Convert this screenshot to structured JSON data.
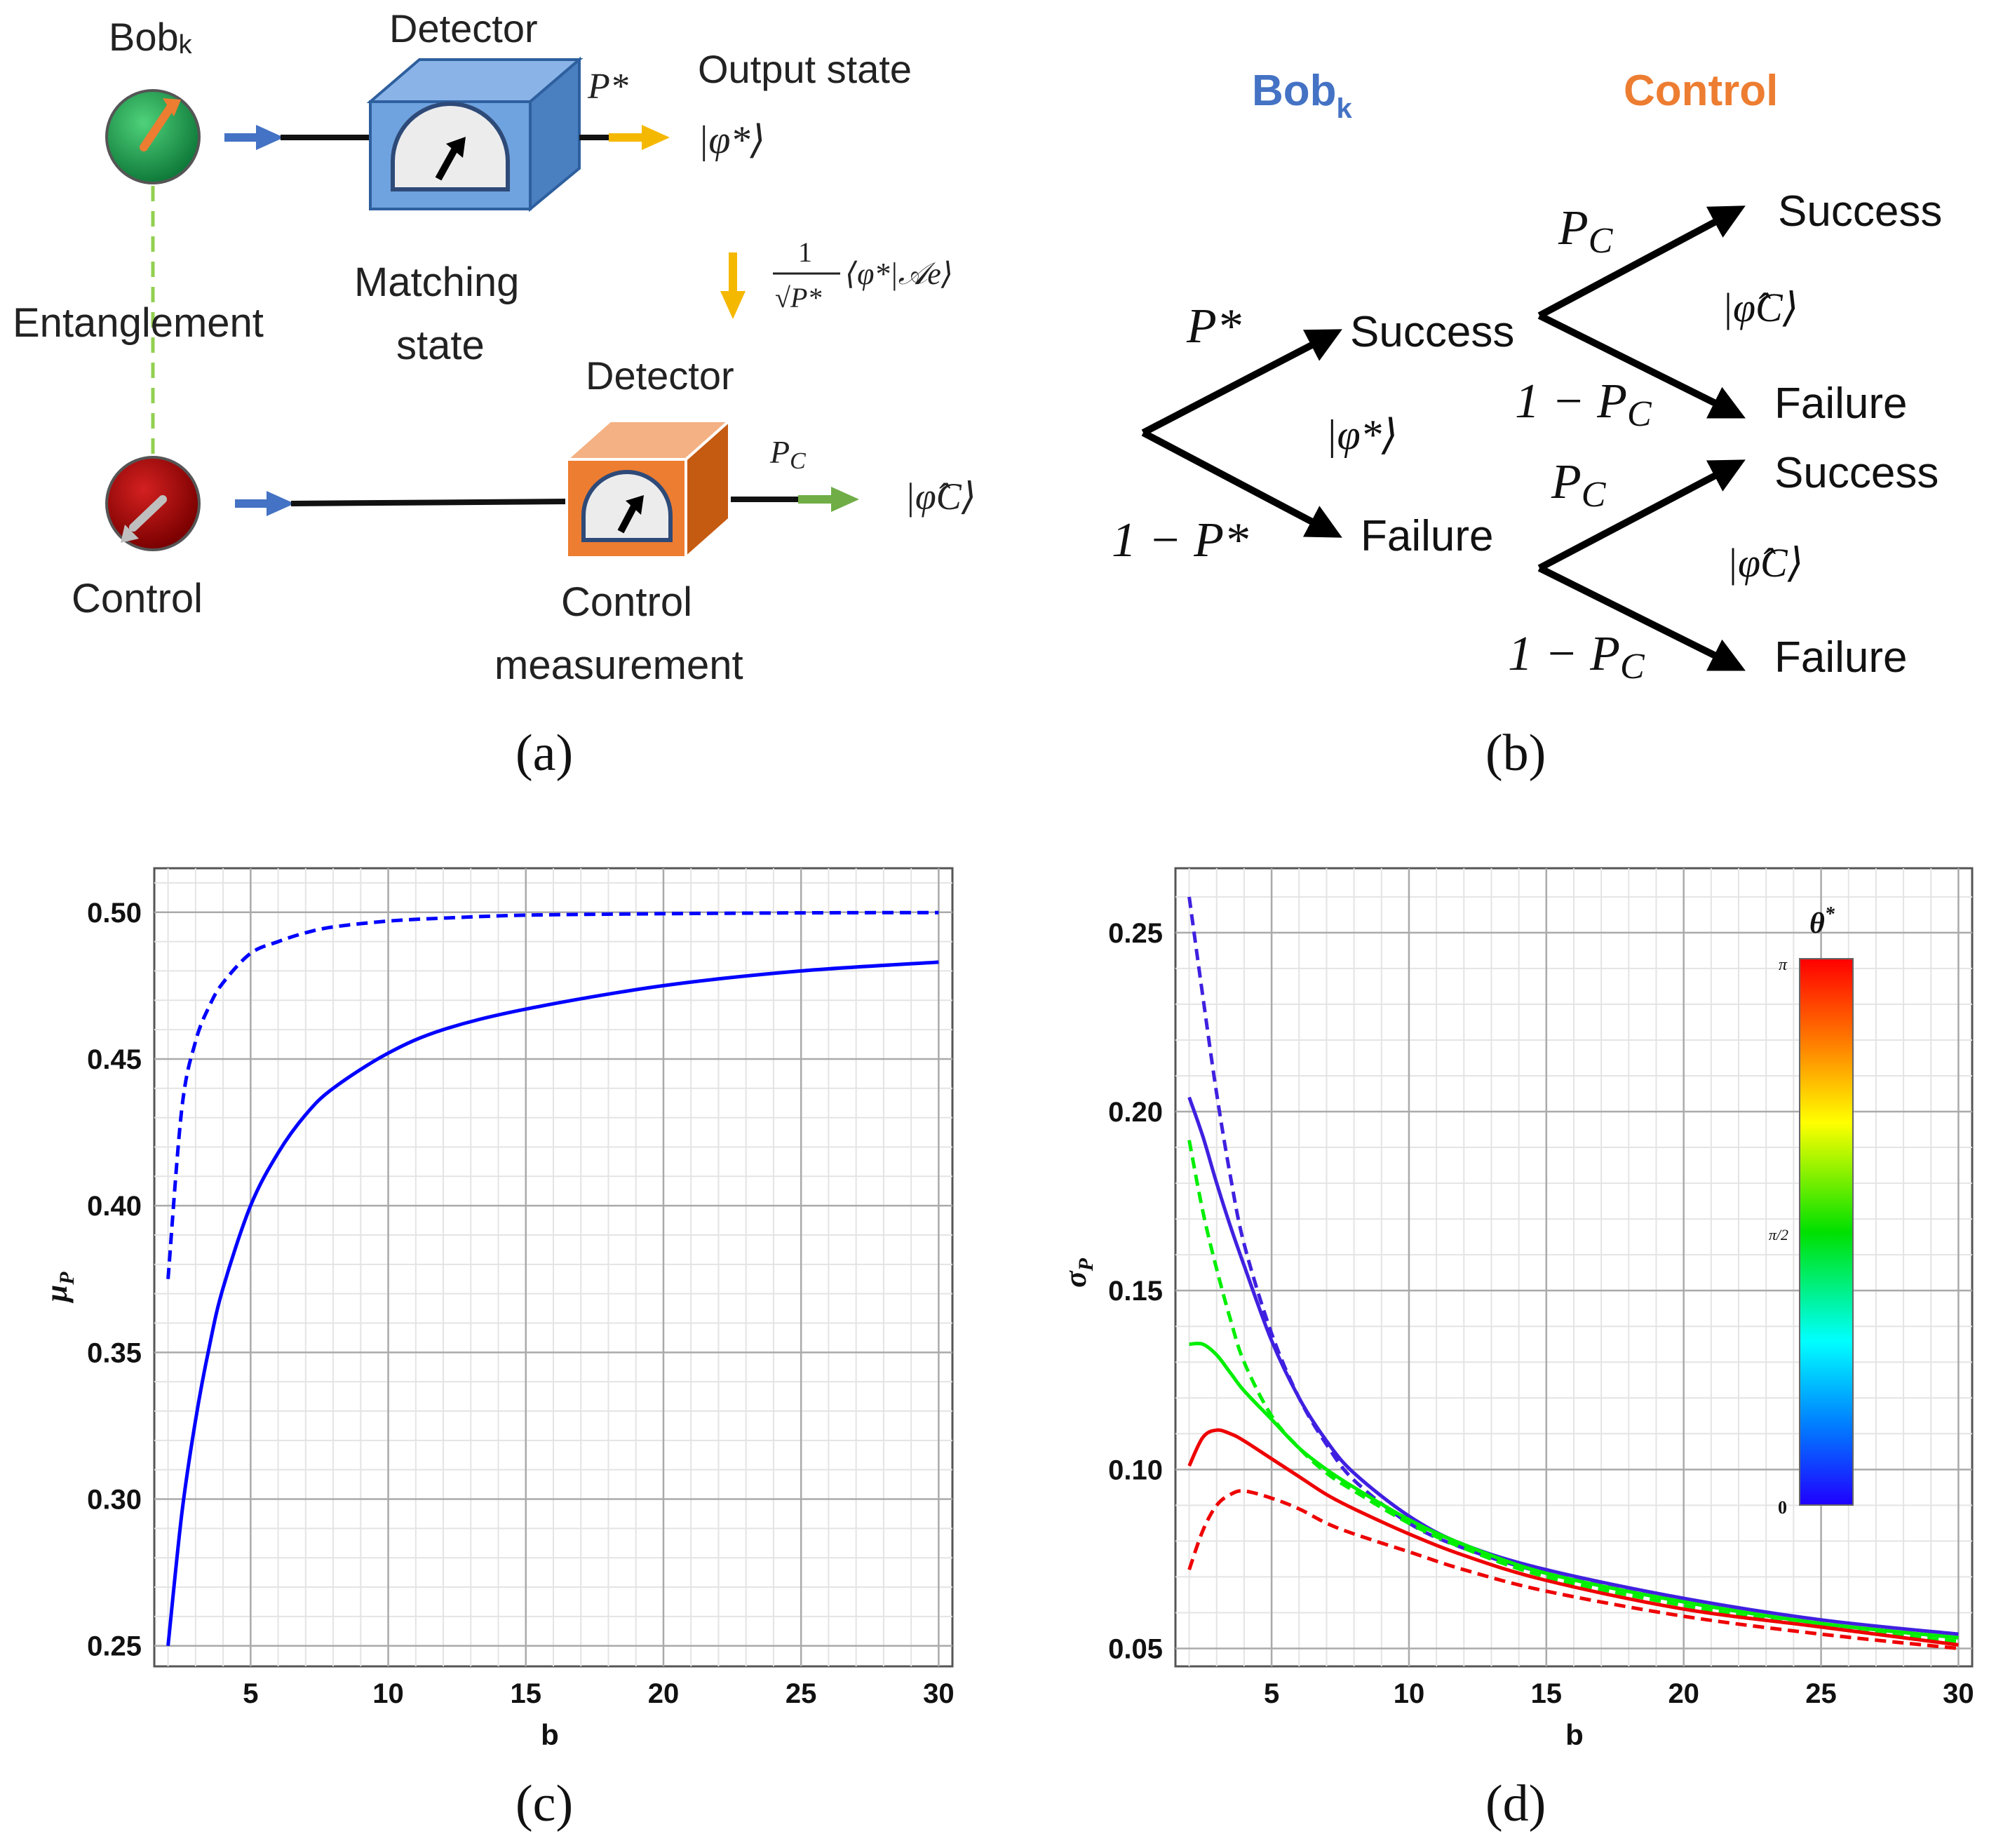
{
  "panel_a": {
    "bob_label": "Bob",
    "bob_sub": "k",
    "detector_top": "Detector",
    "p_star": "P*",
    "output_state_label": "Output state",
    "output_state_ket": "|φ*⟩",
    "entanglement_label": "Entanglement",
    "matching_label_line1": "Matching",
    "matching_label_line2": "state",
    "projection_formula_num": "1",
    "projection_formula_den": "√P*",
    "projection_formula_rest": "⟨φ*|𝒜e⟩",
    "detector_bottom": "Detector",
    "p_c": "PC",
    "control_ket": "|φ̂C⟩",
    "control_label": "Control",
    "control_measurement_line1": "Control",
    "control_measurement_line2": "measurement",
    "caption": "(a)"
  },
  "panel_b": {
    "bob_label": "Bob",
    "bob_sub": "k",
    "control_label": "Control",
    "p_star": "P*",
    "one_minus_p_star": "1 − P*",
    "success_1": "Success",
    "failure_1": "Failure",
    "ket_phi_star": "|φ*⟩",
    "p_c_upper": "PC",
    "one_minus_p_c_upper": "1 − PC",
    "success_2": "Success",
    "failure_2": "Failure",
    "ket_phi_c_upper": "|φ̂C⟩",
    "p_c_lower": "PC",
    "one_minus_p_c_lower": "1 − PC",
    "success_3": "Success",
    "failure_3": "Failure",
    "ket_phi_c_lower": "|φ̂C⟩",
    "caption": "(b)"
  },
  "colors": {
    "blue_arrow": "#4472c4",
    "yellow_arrow": "#f5b800",
    "green_arrow": "#70ad47",
    "bob_blue": "#4472c4",
    "control_orange": "#ed7d31",
    "curve_blue": "#0000ff",
    "curve_violet": "#4020e0",
    "curve_green": "#00ee00",
    "curve_red": "#ee0000"
  },
  "chart_data": [
    {
      "panel": "(c)",
      "type": "line",
      "title": "",
      "xlabel": "b",
      "ylabel": "μP",
      "xlim": [
        1.5,
        30.5
      ],
      "ylim": [
        0.243,
        0.515
      ],
      "xticks": [
        5,
        10,
        15,
        20,
        25,
        30
      ],
      "yticks": [
        0.25,
        0.3,
        0.35,
        0.4,
        0.45,
        0.5
      ],
      "ytick_labels": [
        "0.25",
        "0.30",
        "0.35",
        "0.40",
        "0.45",
        "0.50"
      ],
      "grid": true,
      "series": [
        {
          "name": "solid",
          "style": "solid",
          "color": "#0000ff",
          "x": [
            2,
            2.5,
            3,
            3.5,
            4,
            5,
            6,
            7,
            8,
            10,
            12,
            15,
            20,
            25,
            30
          ],
          "y": [
            0.25,
            0.295,
            0.327,
            0.352,
            0.372,
            0.4,
            0.418,
            0.431,
            0.44,
            0.452,
            0.46,
            0.467,
            0.475,
            0.48,
            0.483
          ]
        },
        {
          "name": "dashed",
          "style": "dashed",
          "color": "#0000ff",
          "x": [
            2,
            2.5,
            3,
            3.5,
            4,
            5,
            6,
            7,
            8,
            10,
            12,
            15,
            20,
            25,
            30
          ],
          "y": [
            0.375,
            0.433,
            0.456,
            0.468,
            0.476,
            0.486,
            0.49,
            0.493,
            0.495,
            0.497,
            0.498,
            0.499,
            0.4995,
            0.4998,
            0.4999
          ]
        }
      ]
    },
    {
      "panel": "(d)",
      "type": "line",
      "title": "",
      "xlabel": "b",
      "ylabel": "σP",
      "xlim": [
        1.5,
        30.5
      ],
      "ylim": [
        0.045,
        0.268
      ],
      "xticks": [
        5,
        10,
        15,
        20,
        25,
        30
      ],
      "yticks": [
        0.05,
        0.1,
        0.15,
        0.2,
        0.25
      ],
      "ytick_labels": [
        "0.05",
        "0.10",
        "0.15",
        "0.20",
        "0.25"
      ],
      "grid": true,
      "legend": {
        "title": "θ*",
        "type": "colorbar",
        "placement": "top-right",
        "tick_labels": [
          "π",
          "π/2",
          "0"
        ]
      },
      "series": [
        {
          "name": "θ*=0 dashed",
          "style": "dashed",
          "color": "#4020e0",
          "x": [
            2,
            2.5,
            3,
            3.5,
            4,
            5,
            6,
            7,
            8,
            10,
            12,
            15,
            20,
            25,
            30
          ],
          "y": [
            0.26,
            0.232,
            0.205,
            0.182,
            0.163,
            0.138,
            0.12,
            0.107,
            0.097,
            0.085,
            0.078,
            0.071,
            0.063,
            0.057,
            0.053
          ]
        },
        {
          "name": "θ*=0 solid",
          "style": "solid",
          "color": "#4020e0",
          "x": [
            2,
            2.5,
            3,
            3.5,
            4,
            5,
            6,
            7,
            8,
            10,
            12,
            15,
            20,
            25,
            30
          ],
          "y": [
            0.204,
            0.193,
            0.18,
            0.168,
            0.157,
            0.136,
            0.12,
            0.108,
            0.099,
            0.087,
            0.079,
            0.072,
            0.064,
            0.058,
            0.054
          ]
        },
        {
          "name": "θ*=π/2 dashed",
          "style": "dashed",
          "color": "#00ee00",
          "x": [
            2,
            2.5,
            3,
            3.5,
            4,
            5,
            6,
            7,
            8,
            10,
            12,
            15,
            20,
            25,
            30
          ],
          "y": [
            0.192,
            0.172,
            0.156,
            0.142,
            0.13,
            0.115,
            0.106,
            0.099,
            0.094,
            0.085,
            0.078,
            0.07,
            0.062,
            0.056,
            0.052
          ]
        },
        {
          "name": "θ*=π/2 solid",
          "style": "solid",
          "color": "#00ee00",
          "x": [
            2,
            2.5,
            3,
            3.5,
            4,
            5,
            6,
            7,
            8,
            10,
            12,
            15,
            20,
            25,
            30
          ],
          "y": [
            0.135,
            0.135,
            0.132,
            0.127,
            0.122,
            0.114,
            0.106,
            0.1,
            0.095,
            0.086,
            0.079,
            0.071,
            0.063,
            0.057,
            0.053
          ]
        },
        {
          "name": "θ*=π solid",
          "style": "solid",
          "color": "#ee0000",
          "x": [
            2,
            2.5,
            3,
            3.5,
            4,
            5,
            6,
            7,
            8,
            10,
            12,
            15,
            20,
            25,
            30
          ],
          "y": [
            0.101,
            0.109,
            0.111,
            0.11,
            0.108,
            0.103,
            0.098,
            0.093,
            0.089,
            0.082,
            0.076,
            0.069,
            0.061,
            0.056,
            0.051
          ]
        },
        {
          "name": "θ*=π dashed",
          "style": "dashed",
          "color": "#ee0000",
          "x": [
            2,
            2.5,
            3,
            3.5,
            4,
            5,
            6,
            7,
            8,
            10,
            12,
            15,
            20,
            25,
            30
          ],
          "y": [
            0.072,
            0.083,
            0.09,
            0.093,
            0.094,
            0.092,
            0.089,
            0.085,
            0.082,
            0.077,
            0.072,
            0.066,
            0.059,
            0.054,
            0.05
          ]
        }
      ]
    }
  ]
}
